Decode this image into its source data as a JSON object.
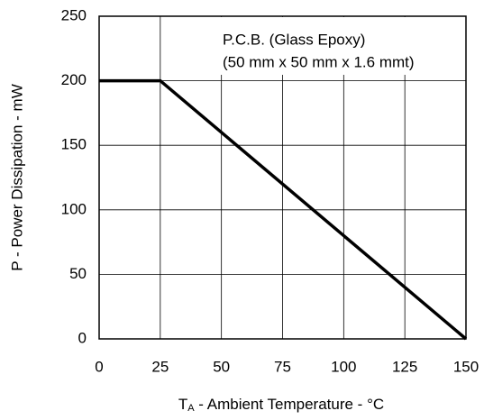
{
  "chart_data": {
    "type": "line",
    "xlabel": {
      "symbol": "T",
      "subscript": "A",
      "text": " - Ambient Temperature - °C"
    },
    "ylabel": "P - Power Dissipation - mW",
    "annotation": [
      "P.C.B. (Glass Epoxy)",
      "(50 mm x 50 mm x 1.6 mmt)"
    ],
    "x": [
      0,
      25,
      150
    ],
    "series": [
      {
        "color": "#000000",
        "values": [
          200,
          200,
          0
        ]
      }
    ],
    "xlim": [
      0,
      150
    ],
    "xticks": [
      0,
      25,
      50,
      75,
      100,
      125,
      150
    ],
    "ylim": [
      0,
      250
    ],
    "yticks": [
      0,
      50,
      100,
      150,
      200,
      250
    ],
    "grid": true
  }
}
